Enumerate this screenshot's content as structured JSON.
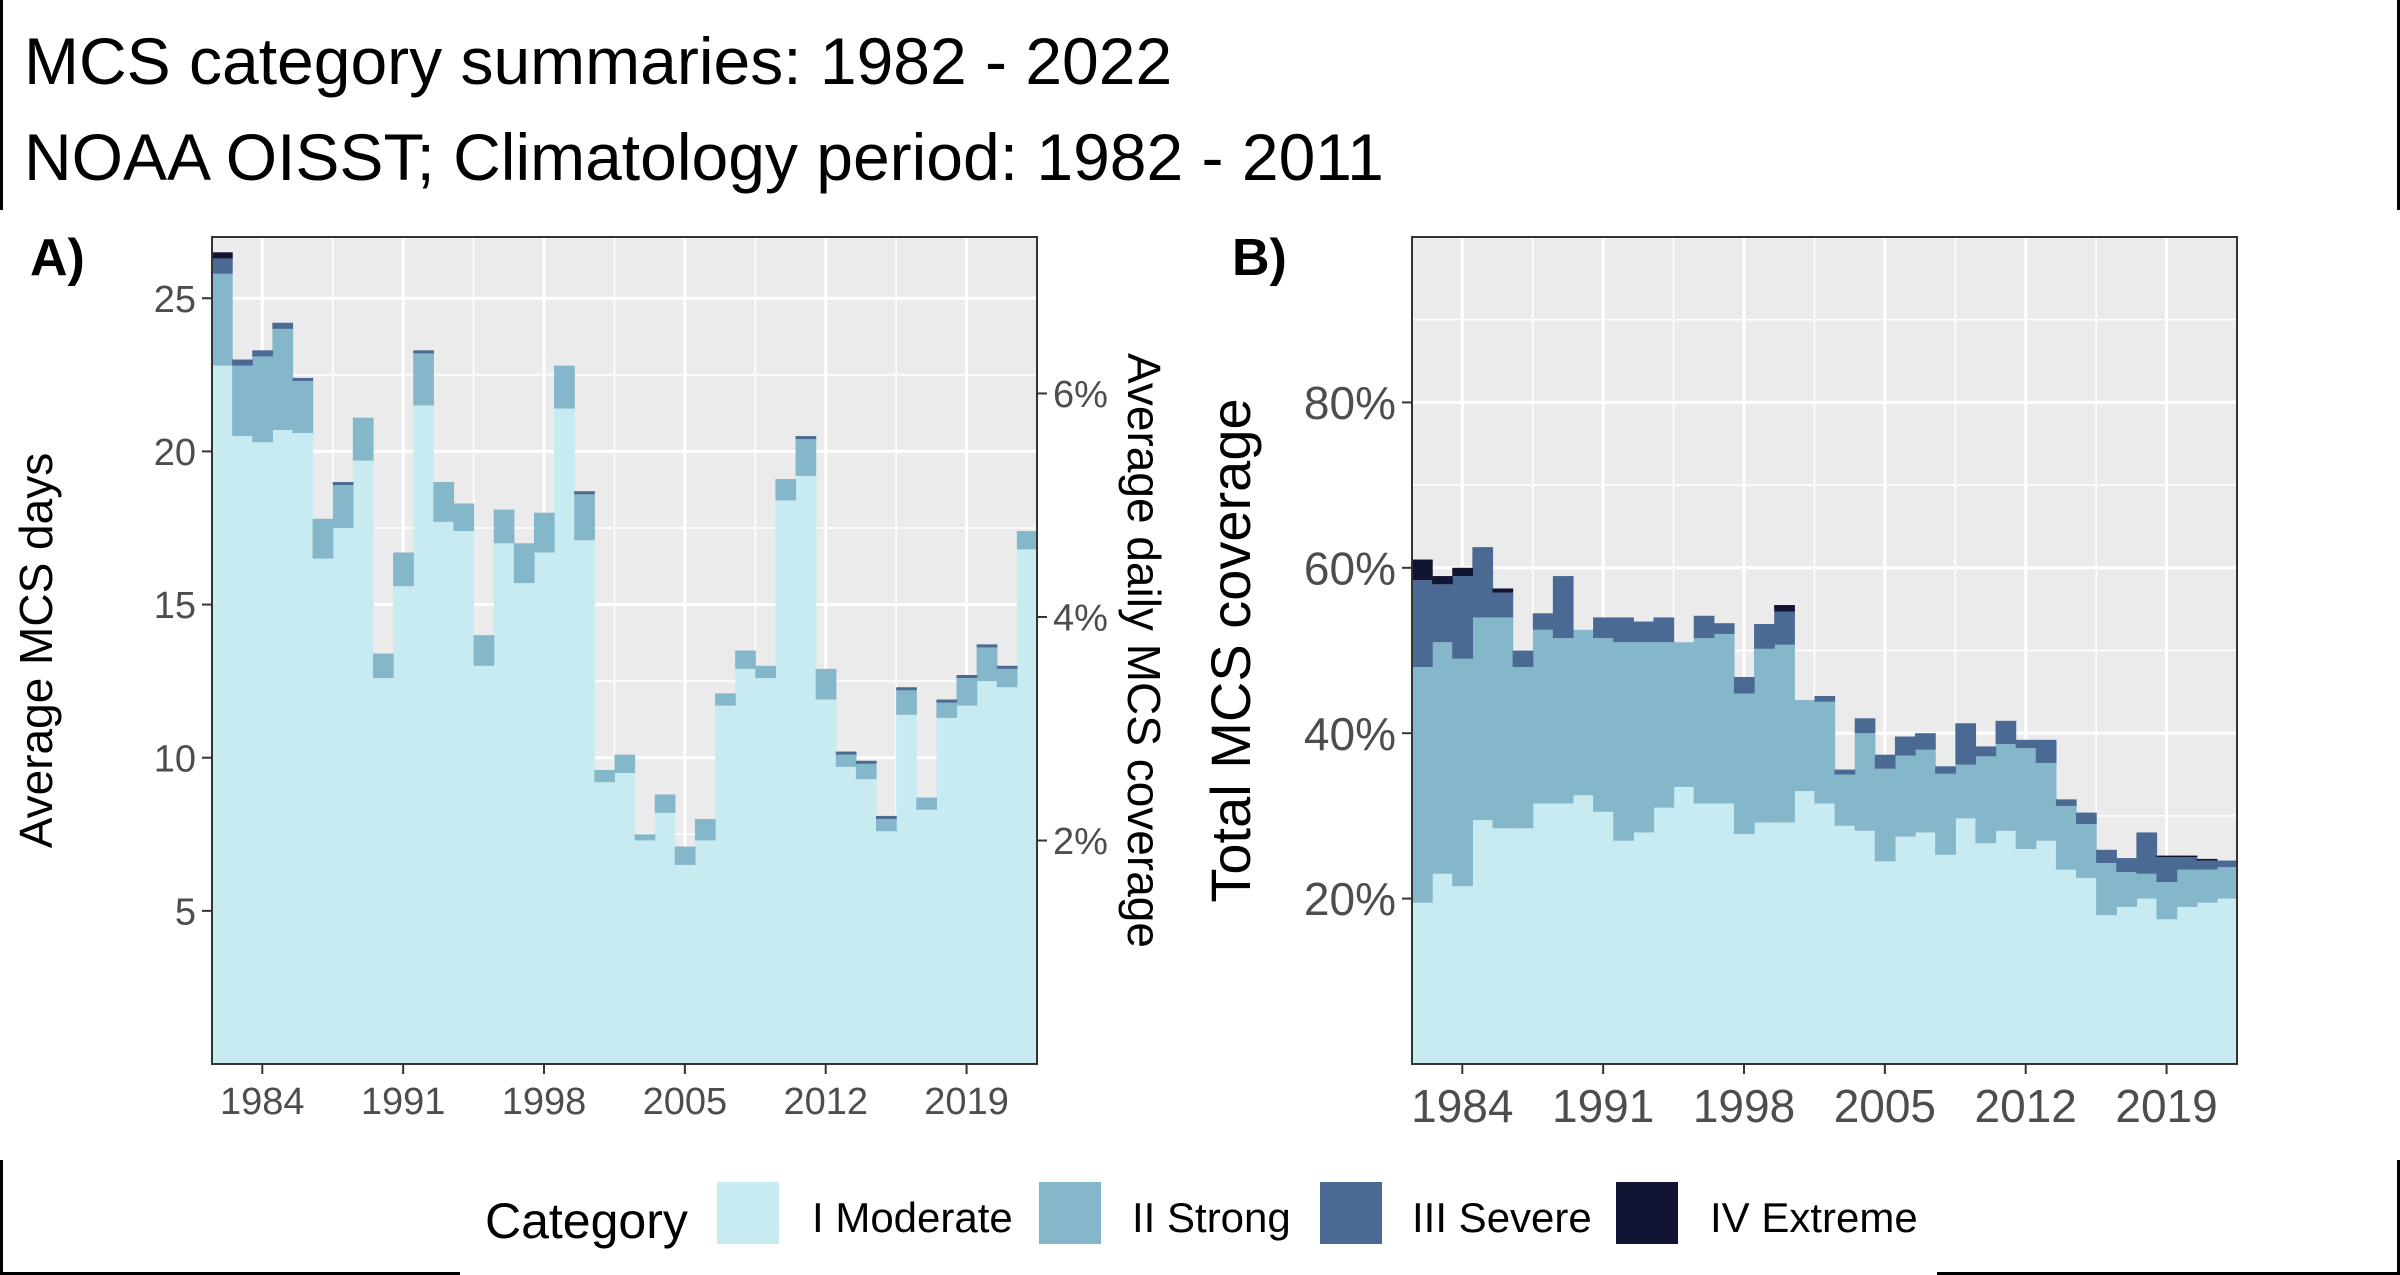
{
  "title": "MCS category summaries: 1982 - 2022",
  "subtitle": "NOAA OISST; Climatology period: 1982 - 2011",
  "colors": {
    "moderate": "#C7EBF0",
    "strong": "#85B7CA",
    "severe": "#4A6A94",
    "extreme": "#111433",
    "panel_bg": "#EBEBEB",
    "grid": "#FFFFFF",
    "axis_text": "#4D4D4D"
  },
  "legend": {
    "title": "Category",
    "items": [
      {
        "label": "I Moderate",
        "color": "#C7EBF0"
      },
      {
        "label": "II Strong",
        "color": "#85B7CA"
      },
      {
        "label": "III Severe",
        "color": "#4A6A94"
      },
      {
        "label": "IV Extreme",
        "color": "#111433"
      }
    ]
  },
  "chart_data": [
    {
      "panel": "A)",
      "type": "bar",
      "stacked": true,
      "ylabel": "Average MCS days",
      "y2label": "Average daily MCS coverage",
      "x": [
        1982,
        1983,
        1984,
        1985,
        1986,
        1987,
        1988,
        1989,
        1990,
        1991,
        1992,
        1993,
        1994,
        1995,
        1996,
        1997,
        1998,
        1999,
        2000,
        2001,
        2002,
        2003,
        2004,
        2005,
        2006,
        2007,
        2008,
        2009,
        2010,
        2011,
        2012,
        2013,
        2014,
        2015,
        2016,
        2017,
        2018,
        2019,
        2020,
        2021,
        2022
      ],
      "xticks": [
        "1984",
        "1991",
        "1998",
        "2005",
        "2012",
        "2019"
      ],
      "yticks": [
        "5",
        "10",
        "15",
        "20",
        "25"
      ],
      "y2ticks": [
        "2%",
        "4%",
        "6%"
      ],
      "ylim": [
        0,
        27
      ],
      "y2lim_fraction": [
        0,
        0.074
      ],
      "series": [
        {
          "name": "I Moderate",
          "values": [
            22.8,
            20.5,
            20.3,
            20.7,
            20.6,
            16.5,
            17.5,
            19.7,
            12.6,
            15.6,
            21.5,
            17.7,
            17.4,
            13.0,
            17.0,
            15.7,
            16.7,
            21.4,
            17.1,
            9.2,
            9.5,
            7.3,
            8.2,
            6.5,
            7.3,
            11.7,
            12.9,
            12.6,
            18.4,
            19.2,
            11.9,
            9.7,
            9.3,
            7.6,
            11.4,
            8.3,
            11.3,
            11.7,
            12.5,
            12.3,
            16.8
          ]
        },
        {
          "name": "II Strong",
          "values": [
            3.0,
            2.3,
            2.8,
            3.3,
            1.7,
            1.3,
            1.4,
            1.4,
            0.8,
            1.1,
            1.7,
            1.3,
            0.9,
            1.0,
            1.1,
            1.3,
            1.3,
            1.4,
            1.5,
            0.4,
            0.6,
            0.2,
            0.6,
            0.6,
            0.7,
            0.4,
            0.6,
            0.4,
            0.7,
            1.2,
            1.0,
            0.4,
            0.5,
            0.4,
            0.8,
            0.4,
            0.5,
            0.9,
            1.1,
            0.6,
            0.6
          ]
        },
        {
          "name": "III Severe",
          "values": [
            0.5,
            0.2,
            0.2,
            0.2,
            0.1,
            0.0,
            0.1,
            0.0,
            0.0,
            0.0,
            0.1,
            0.0,
            0.0,
            0.0,
            0.0,
            0.0,
            0.0,
            0.0,
            0.1,
            0.0,
            0.0,
            0.0,
            0.0,
            0.0,
            0.0,
            0.0,
            0.0,
            0.0,
            0.0,
            0.1,
            0.0,
            0.1,
            0.1,
            0.1,
            0.1,
            0.0,
            0.1,
            0.1,
            0.1,
            0.1,
            0.0
          ]
        },
        {
          "name": "IV Extreme",
          "values": [
            0.2,
            0.0,
            0.0,
            0.0,
            0.0,
            0.0,
            0.0,
            0.0,
            0.0,
            0.0,
            0.0,
            0.0,
            0.0,
            0.0,
            0.0,
            0.0,
            0.0,
            0.0,
            0.0,
            0.0,
            0.0,
            0.0,
            0.0,
            0.0,
            0.0,
            0.0,
            0.0,
            0.0,
            0.0,
            0.0,
            0.0,
            0.0,
            0.0,
            0.0,
            0.0,
            0.0,
            0.0,
            0.0,
            0.0,
            0.0,
            0.0
          ]
        }
      ]
    },
    {
      "panel": "B)",
      "type": "bar",
      "stacked": true,
      "ylabel": "Total MCS coverage",
      "x": [
        1982,
        1983,
        1984,
        1985,
        1986,
        1987,
        1988,
        1989,
        1990,
        1991,
        1992,
        1993,
        1994,
        1995,
        1996,
        1997,
        1998,
        1999,
        2000,
        2001,
        2002,
        2003,
        2004,
        2005,
        2006,
        2007,
        2008,
        2009,
        2010,
        2011,
        2012,
        2013,
        2014,
        2015,
        2016,
        2017,
        2018,
        2019,
        2020,
        2021,
        2022
      ],
      "xticks": [
        "1984",
        "1991",
        "1998",
        "2005",
        "2012",
        "2019"
      ],
      "yticks": [
        "20%",
        "40%",
        "60%",
        "80%"
      ],
      "ylim": [
        0,
        1.0
      ],
      "series": [
        {
          "name": "I Moderate",
          "values": [
            0.195,
            0.23,
            0.215,
            0.295,
            0.285,
            0.285,
            0.315,
            0.315,
            0.325,
            0.305,
            0.27,
            0.28,
            0.31,
            0.335,
            0.315,
            0.315,
            0.278,
            0.292,
            0.292,
            0.33,
            0.315,
            0.288,
            0.282,
            0.245,
            0.275,
            0.28,
            0.253,
            0.297,
            0.267,
            0.282,
            0.26,
            0.27,
            0.235,
            0.225,
            0.18,
            0.19,
            0.2,
            0.175,
            0.19,
            0.195,
            0.2
          ]
        },
        {
          "name": "II Strong",
          "values": [
            0.285,
            0.28,
            0.275,
            0.245,
            0.255,
            0.195,
            0.21,
            0.2,
            0.2,
            0.21,
            0.24,
            0.23,
            0.2,
            0.175,
            0.2,
            0.205,
            0.17,
            0.21,
            0.215,
            0.11,
            0.123,
            0.062,
            0.118,
            0.112,
            0.098,
            0.1,
            0.098,
            0.065,
            0.105,
            0.105,
            0.122,
            0.094,
            0.077,
            0.065,
            0.063,
            0.042,
            0.03,
            0.045,
            0.045,
            0.04,
            0.038
          ]
        },
        {
          "name": "III Severe",
          "values": [
            0.105,
            0.07,
            0.1,
            0.085,
            0.03,
            0.02,
            0.02,
            0.075,
            0.0,
            0.025,
            0.03,
            0.025,
            0.03,
            0.0,
            0.027,
            0.013,
            0.02,
            0.03,
            0.04,
            0.0,
            0.007,
            0.006,
            0.018,
            0.017,
            0.023,
            0.02,
            0.009,
            0.05,
            0.012,
            0.028,
            0.01,
            0.028,
            0.008,
            0.014,
            0.016,
            0.017,
            0.05,
            0.03,
            0.015,
            0.011,
            0.008
          ]
        },
        {
          "name": "IV Extreme",
          "values": [
            0.025,
            0.01,
            0.01,
            0.0,
            0.005,
            0.0,
            0.0,
            0.0,
            0.0,
            0.0,
            0.0,
            0.0,
            0.0,
            0.0,
            0.0,
            0.0,
            0.0,
            0.0,
            0.008,
            0.0,
            0.0,
            0.0,
            0.0,
            0.0,
            0.0,
            0.0,
            0.0,
            0.0,
            0.0,
            0.0,
            0.0,
            0.0,
            0.0,
            0.0,
            0.0,
            0.0,
            0.0,
            0.002,
            0.002,
            0.002,
            0.0
          ]
        }
      ]
    }
  ]
}
